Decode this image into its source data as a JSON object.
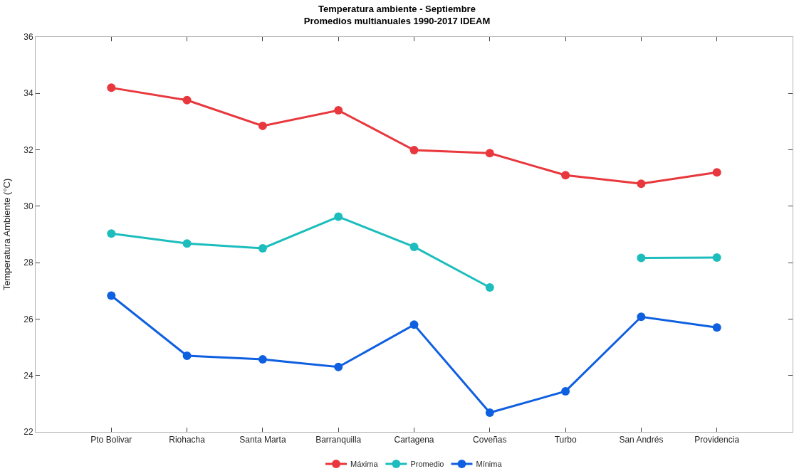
{
  "chart_data": {
    "type": "line",
    "title": "Temperatura ambiente - Septiembre\nPromedios multianuales 1990-2017 IDEAM",
    "ylabel": "Temperatura Ambiente (°C)",
    "categories": [
      "Pto Bolivar",
      "Riohacha",
      "Santa Marta",
      "Barranquilla",
      "Cartagena",
      "Coveñas",
      "Turbo",
      "San Andrés",
      "Providencia"
    ],
    "series": [
      {
        "name": "Máxima",
        "color": "#e8383d",
        "values": [
          34.2,
          33.76,
          32.85,
          33.4,
          31.99,
          31.88,
          31.1,
          30.8,
          31.2
        ]
      },
      {
        "name": "Promedio",
        "color": "#1dbdbd",
        "values": [
          29.03,
          28.68,
          28.51,
          29.63,
          28.56,
          27.12,
          null,
          28.17,
          28.18
        ]
      },
      {
        "name": "Mínima",
        "color": "#0f60e0",
        "values": [
          26.83,
          24.7,
          24.57,
          24.3,
          25.8,
          22.68,
          23.44,
          26.08,
          25.7
        ]
      }
    ],
    "ylim": [
      22,
      36
    ],
    "yticks": [
      22,
      24,
      26,
      28,
      30,
      32,
      34,
      36
    ],
    "legend": "bottom",
    "marker": "circle",
    "line_style": "solid"
  }
}
